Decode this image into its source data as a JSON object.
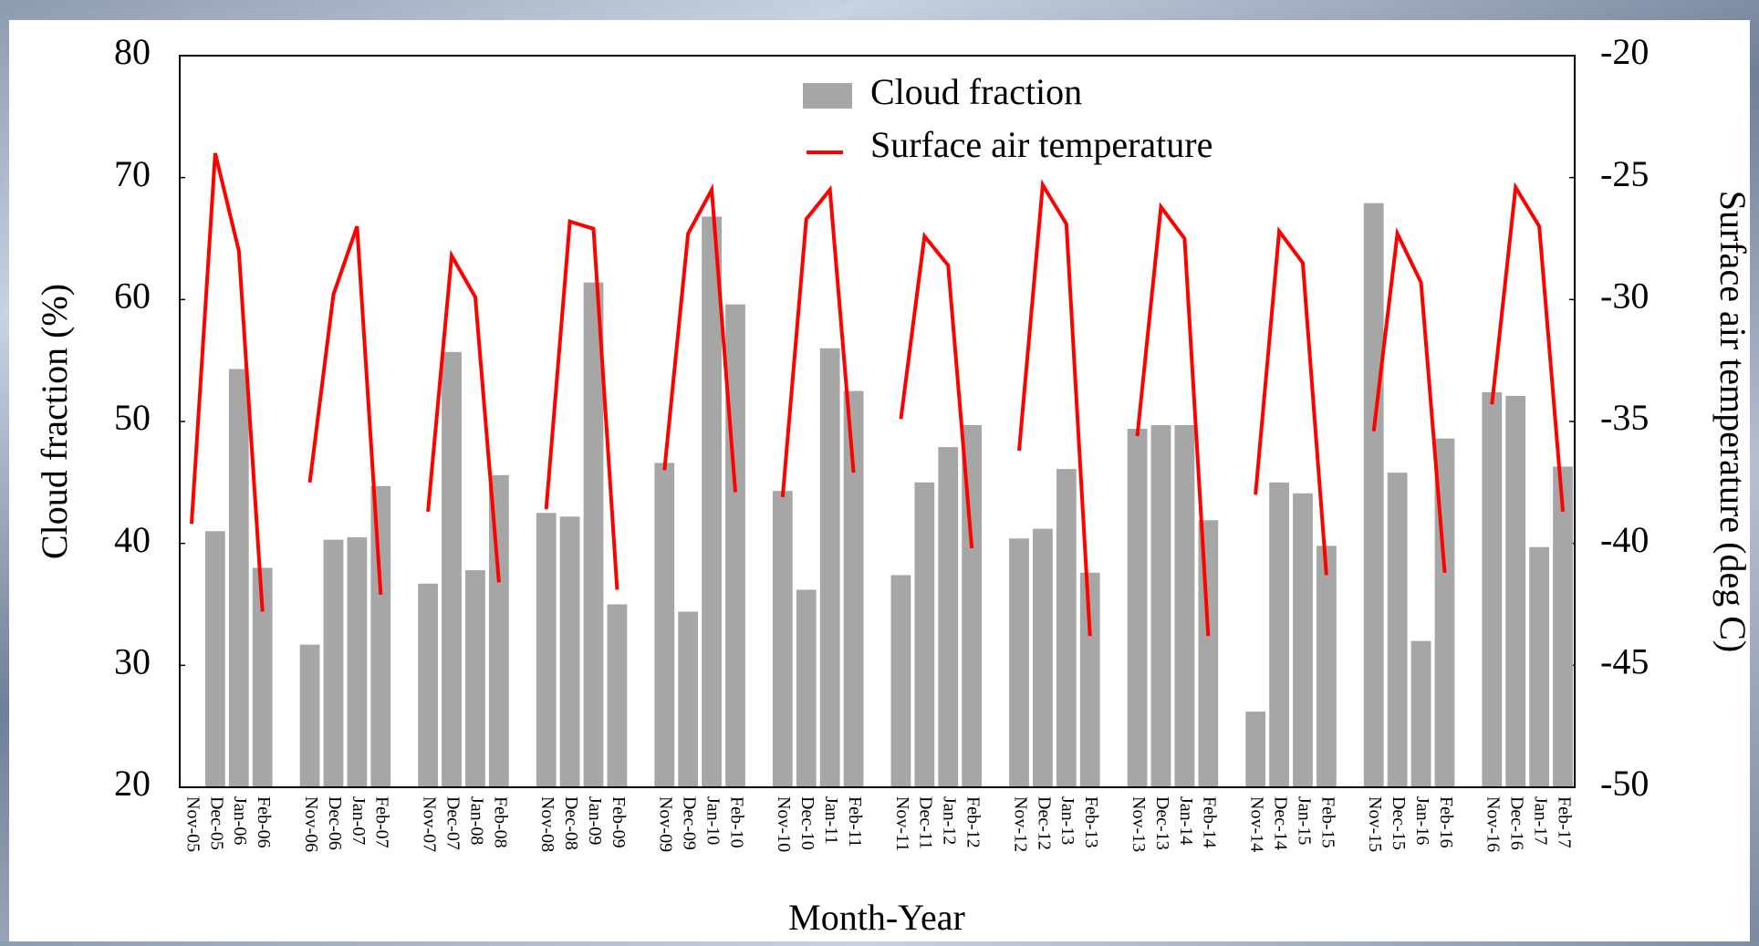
{
  "chart_data": {
    "type": "bar-line",
    "categories": [
      "Nov-05",
      "Dec-05",
      "Jan-06",
      "Feb-06",
      null,
      "Nov-06",
      "Dec-06",
      "Jan-07",
      "Feb-07",
      null,
      "Nov-07",
      "Dec-07",
      "Jan-08",
      "Feb-08",
      null,
      "Nov-08",
      "Dec-08",
      "Jan-09",
      "Feb-09",
      null,
      "Nov-09",
      "Dec-09",
      "Jan-10",
      "Feb-10",
      null,
      "Nov-10",
      "Dec-10",
      "Jan-11",
      "Feb-11",
      null,
      "Nov-11",
      "Dec-11",
      "Jan-12",
      "Feb-12",
      null,
      "Nov-12",
      "Dec-12",
      "Jan-13",
      "Feb-13",
      null,
      "Nov-13",
      "Dec-13",
      "Jan-14",
      "Feb-14",
      null,
      "Nov-14",
      "Dec-14",
      "Jan-15",
      "Feb-15",
      null,
      "Nov-15",
      "Dec-15",
      "Jan-16",
      "Feb-16",
      null,
      "Nov-16",
      "Dec-16",
      "Jan-17",
      "Feb-17"
    ],
    "series": [
      {
        "name": "Cloud fraction",
        "type": "bar",
        "color": "#a6a6a6",
        "values": [
          null,
          41,
          54.3,
          38,
          null,
          31.7,
          40.3,
          40.5,
          44.7,
          null,
          36.7,
          55.7,
          37.8,
          45.6,
          null,
          42.5,
          42.2,
          61.4,
          35,
          null,
          46.6,
          34.4,
          66.8,
          59.6,
          null,
          44.3,
          36.2,
          56,
          52.5,
          null,
          37.4,
          45,
          47.9,
          49.7,
          null,
          40.4,
          41.2,
          46.1,
          37.6,
          null,
          49.4,
          49.7,
          49.7,
          41.9,
          null,
          26.2,
          45,
          44.1,
          39.8,
          null,
          67.9,
          45.8,
          32,
          48.6,
          null,
          52.4,
          52.1,
          39.7,
          46.3
        ]
      },
      {
        "name": "Surface air temperature",
        "type": "line",
        "axis": "y2",
        "color": "#ff0000",
        "values": [
          -39.2,
          -24,
          -28,
          -42.8,
          null,
          -37.5,
          -29.8,
          -27,
          -42.1,
          null,
          -38.7,
          -28.2,
          -29.9,
          -41.6,
          null,
          -38.6,
          -26.8,
          -27.1,
          -41.9,
          null,
          -37,
          -27.3,
          -25.5,
          -37.9,
          null,
          -38.1,
          -26.7,
          -25.5,
          -37.1,
          null,
          -34.9,
          -27.4,
          -28.6,
          -40.2,
          null,
          -36.2,
          -25.3,
          -26.9,
          -43.8,
          null,
          -35.6,
          -26.2,
          -27.5,
          -43.8,
          null,
          -38,
          -27.2,
          -28.5,
          -41.3,
          null,
          -35.4,
          -27.3,
          -29.3,
          -41.2,
          null,
          -34.3,
          -25.4,
          -27,
          -38.7
        ]
      }
    ],
    "x_label": "Month-Year",
    "y_label": "Cloud fraction (%)",
    "y2_label": "Surface air temperature (deg C)",
    "ylim": [
      20,
      80
    ],
    "yticks": [
      20,
      30,
      40,
      50,
      60,
      70,
      80
    ],
    "y2lim": [
      -50,
      -20
    ],
    "y2ticks": [
      -50,
      -45,
      -40,
      -35,
      -30,
      -25,
      -20
    ],
    "grid": false,
    "legend": "top-center"
  }
}
